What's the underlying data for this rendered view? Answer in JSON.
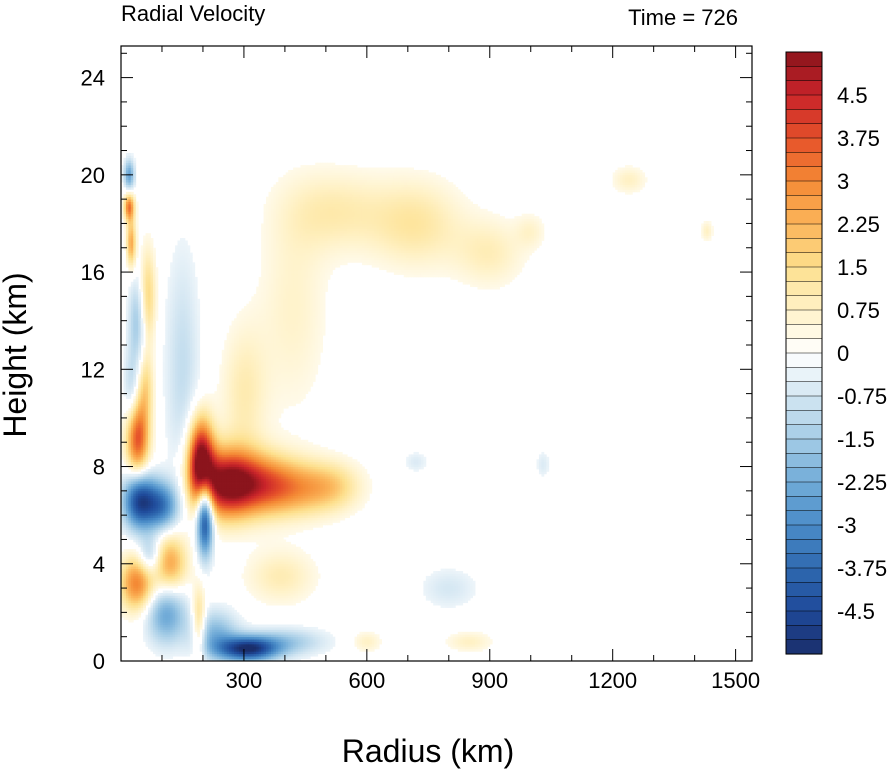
{
  "chart_data": {
    "type": "heatmap",
    "title_left": "Radial Velocity",
    "title_right": "Time = 726",
    "xlabel": "Radius (km)",
    "ylabel": "Height (km)",
    "xlim": [
      0,
      1540
    ],
    "ylim": [
      0,
      25.3
    ],
    "xticks": [
      300,
      600,
      900,
      1200,
      1500
    ],
    "yticks": [
      0,
      4,
      8,
      12,
      16,
      20,
      24
    ],
    "colorbar": {
      "min": -5.25,
      "max": 5.25,
      "step": 0.25,
      "tick_values": [
        4.5,
        3.75,
        3,
        2.25,
        1.5,
        0.75,
        0,
        -0.75,
        -1.5,
        -2.25,
        -3,
        -3.75,
        -4.5
      ],
      "tick_labels": [
        "4.5",
        "3.75",
        "3",
        "2.25",
        "1.5",
        "0.75",
        "0",
        "-0.75",
        "-1.5",
        "-2.25",
        "-3",
        "-3.75",
        "-4.5"
      ],
      "anchor_colors": [
        [
          -5.25,
          "#1a2e6b"
        ],
        [
          -4.5,
          "#1f4a9a"
        ],
        [
          -3.75,
          "#2f69b0"
        ],
        [
          -3.0,
          "#4a8cc8"
        ],
        [
          -2.25,
          "#72acd8"
        ],
        [
          -1.5,
          "#a4cce6"
        ],
        [
          -0.75,
          "#d3e6f2"
        ],
        [
          0.0,
          "#ffffff"
        ],
        [
          0.75,
          "#fff2c8"
        ],
        [
          1.5,
          "#fde08e"
        ],
        [
          2.25,
          "#fbb55a"
        ],
        [
          3.0,
          "#f48a35"
        ],
        [
          3.75,
          "#e5502a"
        ],
        [
          4.5,
          "#c9242a"
        ],
        [
          5.25,
          "#8b141c"
        ]
      ]
    },
    "features": [
      {
        "r": 195,
        "z": 8.3,
        "value": 5.2,
        "sr": 22,
        "sz": 1.2
      },
      {
        "r": 250,
        "z": 7.3,
        "value": 4.2,
        "sr": 50,
        "sz": 1.0
      },
      {
        "r": 330,
        "z": 7.3,
        "value": 3.0,
        "sr": 65,
        "sz": 0.9
      },
      {
        "r": 430,
        "z": 7.1,
        "value": 2.0,
        "sr": 70,
        "sz": 0.8
      },
      {
        "r": 520,
        "z": 7.2,
        "value": 1.2,
        "sr": 50,
        "sz": 0.7
      },
      {
        "r": 205,
        "z": 6.0,
        "value": -5.2,
        "sr": 14,
        "sz": 1.1
      },
      {
        "r": 45,
        "z": 6.6,
        "value": -4.6,
        "sr": 28,
        "sz": 0.8
      },
      {
        "r": 100,
        "z": 6.4,
        "value": -3.2,
        "sr": 28,
        "sz": 0.7
      },
      {
        "r": 40,
        "z": 9.2,
        "value": 3.9,
        "sr": 20,
        "sz": 1.1
      },
      {
        "r": 40,
        "z": 3.2,
        "value": 3.2,
        "sr": 30,
        "sz": 0.8
      },
      {
        "r": 120,
        "z": 4.0,
        "value": 2.6,
        "sr": 30,
        "sz": 0.9
      },
      {
        "r": 70,
        "z": 4.3,
        "value": -1.8,
        "sr": 20,
        "sz": 0.6
      },
      {
        "r": 310,
        "z": 0.5,
        "value": -4.8,
        "sr": 50,
        "sz": 0.35
      },
      {
        "r": 230,
        "z": 1.1,
        "value": -2.0,
        "sr": 40,
        "sz": 0.7
      },
      {
        "r": 400,
        "z": 0.8,
        "value": -1.5,
        "sr": 70,
        "sz": 0.4
      },
      {
        "r": 110,
        "z": 2.0,
        "value": -2.5,
        "sr": 35,
        "sz": 0.9
      },
      {
        "r": 190,
        "z": 1.6,
        "value": 2.0,
        "sr": 12,
        "sz": 1.0
      },
      {
        "r": 20,
        "z": 18.7,
        "value": 3.2,
        "sr": 9,
        "sz": 0.4
      },
      {
        "r": 20,
        "z": 20.0,
        "value": -2.5,
        "sr": 9,
        "sz": 0.45
      },
      {
        "r": 25,
        "z": 17.2,
        "value": 2.5,
        "sr": 8,
        "sz": 0.7
      },
      {
        "r": 65,
        "z": 15.0,
        "value": 1.8,
        "sr": 14,
        "sz": 1.4
      },
      {
        "r": 40,
        "z": 14.0,
        "value": -1.6,
        "sr": 15,
        "sz": 1.3
      },
      {
        "r": 25,
        "z": 11.0,
        "value": -1.2,
        "sr": 14,
        "sz": 1.2
      },
      {
        "r": 60,
        "z": 11.3,
        "value": 1.5,
        "sr": 14,
        "sz": 1.0
      },
      {
        "r": 150,
        "z": 12.0,
        "value": -1.0,
        "sr": 30,
        "sz": 3.5
      },
      {
        "r": 300,
        "z": 11.0,
        "value": 1.0,
        "sr": 40,
        "sz": 2.0
      },
      {
        "r": 520,
        "z": 18.5,
        "value": 1.0,
        "sr": 90,
        "sz": 1.2
      },
      {
        "r": 720,
        "z": 18.0,
        "value": 1.2,
        "sr": 80,
        "sz": 1.3
      },
      {
        "r": 900,
        "z": 16.8,
        "value": 0.9,
        "sr": 60,
        "sz": 1.0
      },
      {
        "r": 420,
        "z": 14.5,
        "value": 0.7,
        "sr": 60,
        "sz": 3.0
      },
      {
        "r": 1240,
        "z": 19.8,
        "value": 0.8,
        "sr": 30,
        "sz": 0.4
      },
      {
        "r": 1430,
        "z": 17.7,
        "value": 0.8,
        "sr": 10,
        "sz": 0.3
      },
      {
        "r": 1000,
        "z": 17.7,
        "value": 0.6,
        "sr": 25,
        "sz": 0.5
      },
      {
        "r": 390,
        "z": 3.5,
        "value": 1.0,
        "sr": 60,
        "sz": 0.8
      },
      {
        "r": 800,
        "z": 3.0,
        "value": -0.7,
        "sr": 50,
        "sz": 0.6
      },
      {
        "r": 1030,
        "z": 8.1,
        "value": -0.6,
        "sr": 12,
        "sz": 0.4
      },
      {
        "r": 720,
        "z": 8.2,
        "value": -0.6,
        "sr": 20,
        "sz": 0.3
      },
      {
        "r": 850,
        "z": 0.8,
        "value": 0.8,
        "sr": 40,
        "sz": 0.3
      },
      {
        "r": 600,
        "z": 0.8,
        "value": 0.8,
        "sr": 25,
        "sz": 0.3
      }
    ]
  }
}
